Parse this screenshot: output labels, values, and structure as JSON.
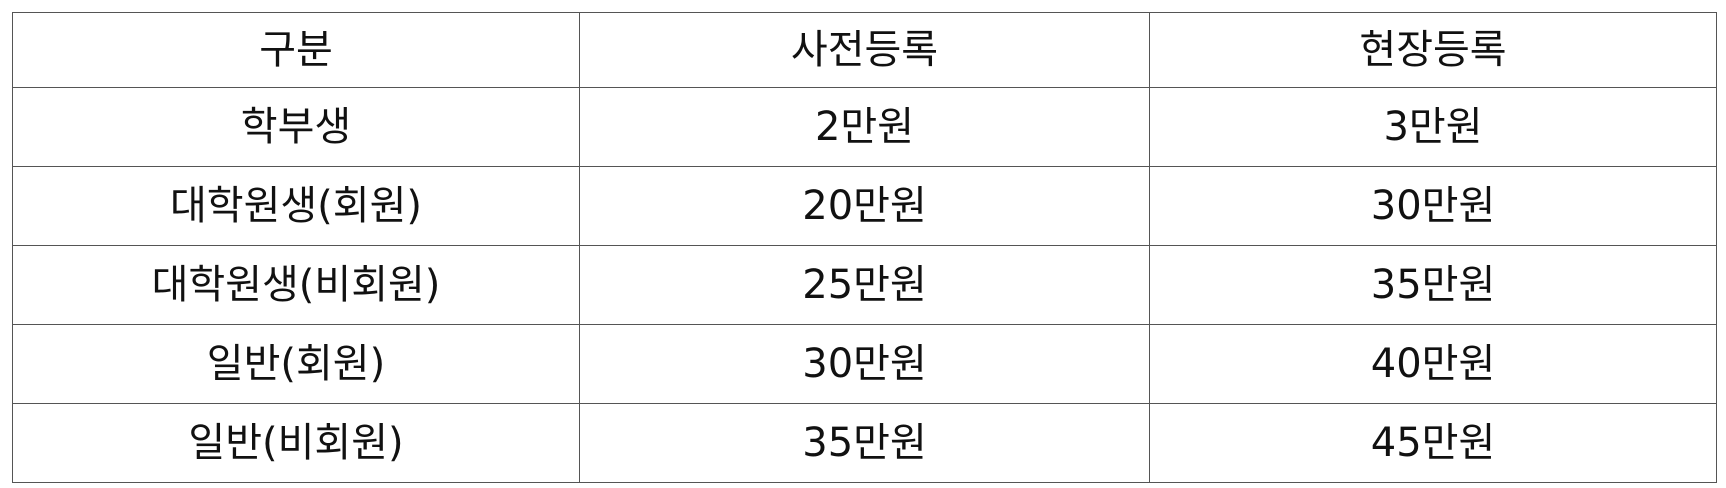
{
  "table": {
    "headers": [
      "구분",
      "사전등록",
      "현장등록"
    ],
    "rows": [
      [
        "학부생",
        "2만원",
        "3만원"
      ],
      [
        "대학원생(회원)",
        "20만원",
        "30만원"
      ],
      [
        "대학원생(비회원)",
        "25만원",
        "35만원"
      ],
      [
        "일반(회원)",
        "30만원",
        "40만원"
      ],
      [
        "일반(비회원)",
        "35만원",
        "45만원"
      ]
    ]
  }
}
